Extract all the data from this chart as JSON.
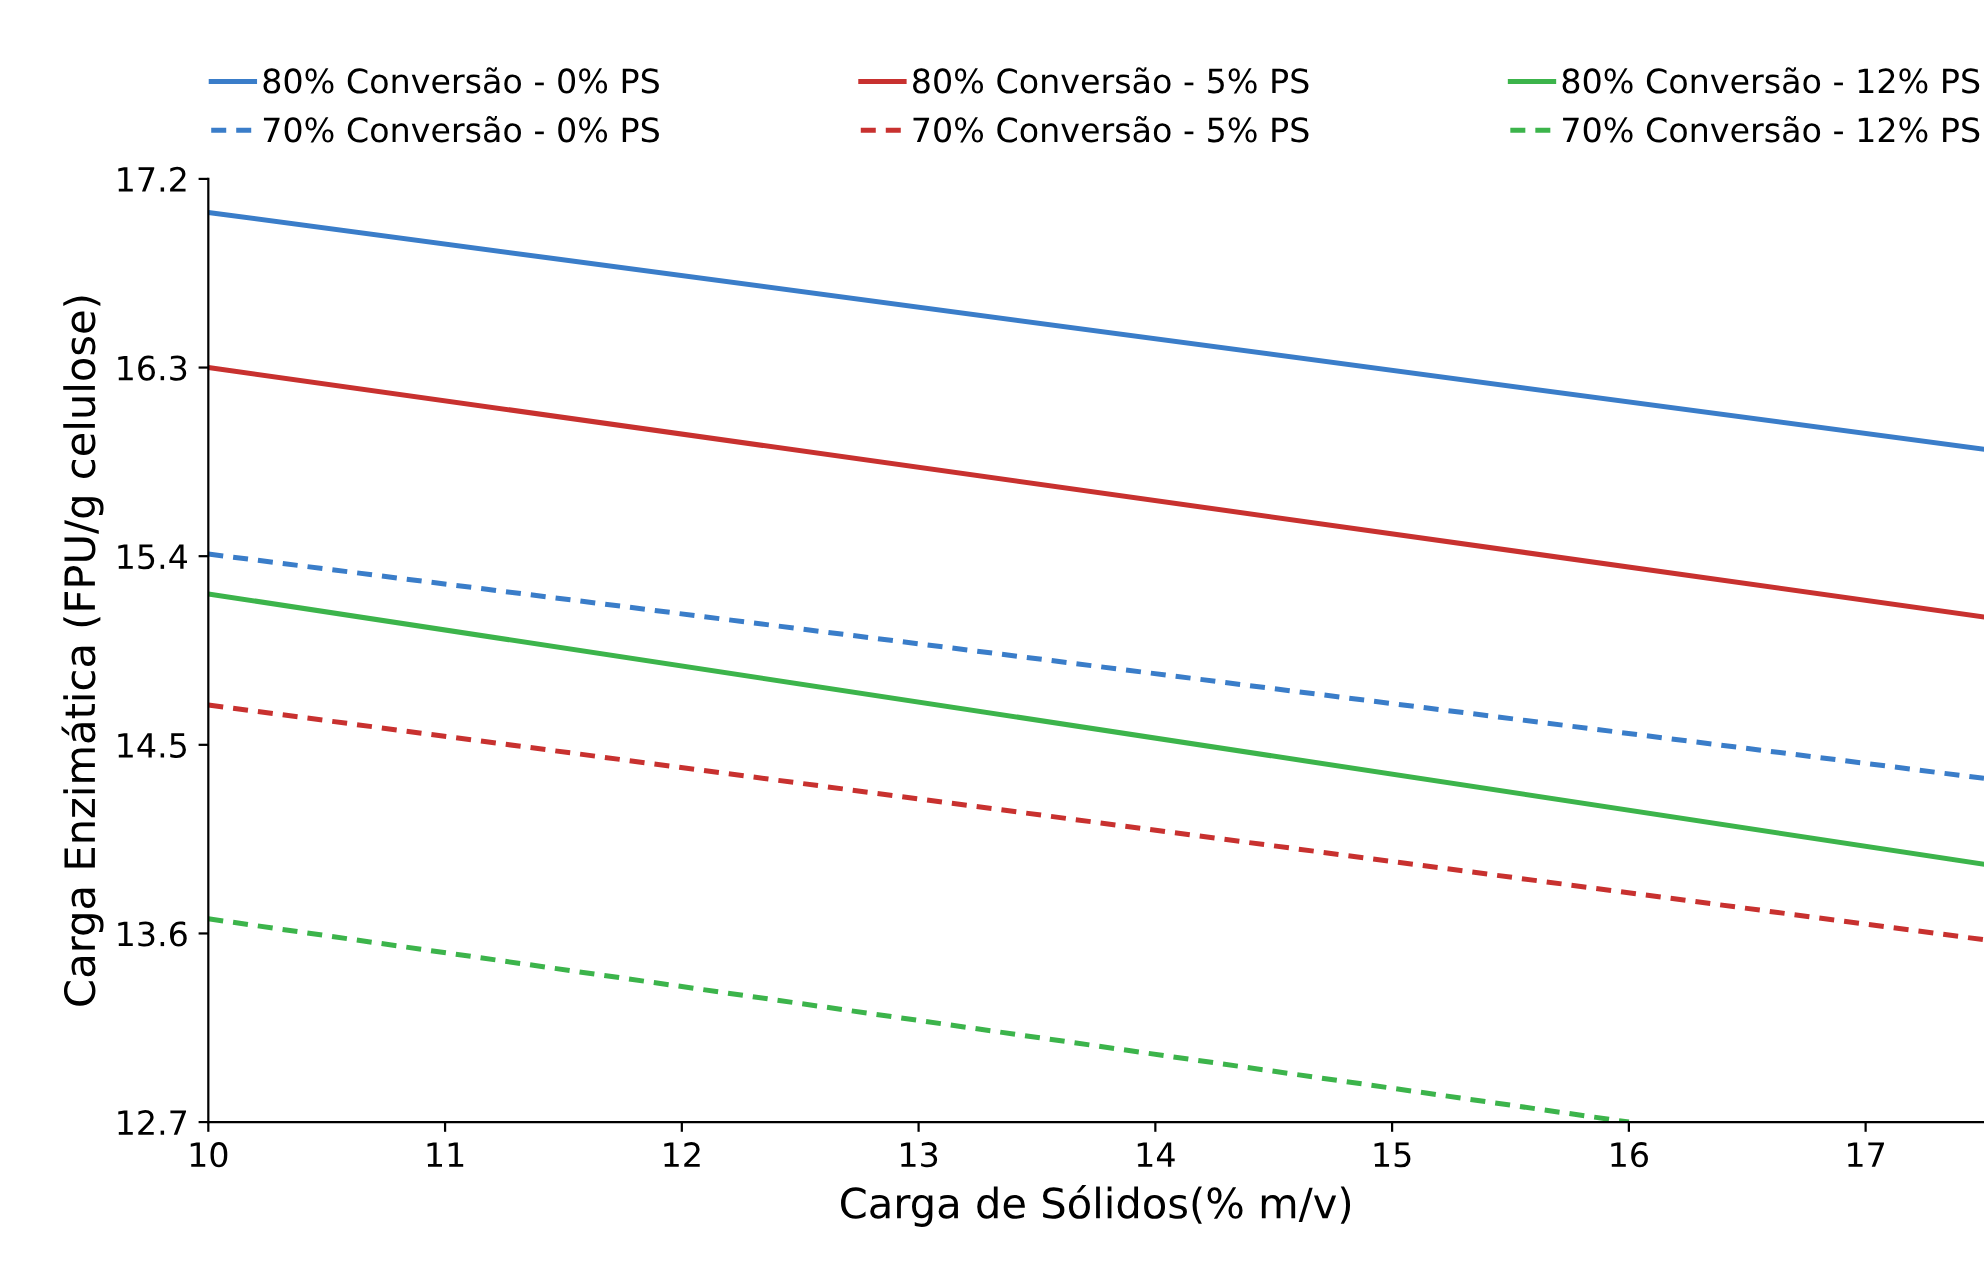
{
  "chart_data": {
    "type": "line",
    "xlabel": "Carga de Sólidos(% m/v)",
    "ylabel": "Carga Enzimática (FPU/g celulose)",
    "xlim": [
      10,
      17.5
    ],
    "xticks": [
      10,
      11,
      12,
      13,
      14,
      15,
      16,
      17
    ],
    "ylim": [
      12.7,
      17.2
    ],
    "yticks": [
      12.7,
      13.6,
      14.5,
      15.4,
      16.3,
      17.2
    ],
    "grid": false,
    "legend": "top",
    "marker": "none",
    "series": [
      {
        "name": "80% Conversão - 0% PS",
        "color": "#3a7dc9",
        "line_style": "solid",
        "x": [
          10,
          17.5
        ],
        "values": [
          17.04,
          15.91
        ]
      },
      {
        "name": "70% Conversão - 0% PS",
        "color": "#3a7dc9",
        "line_style": "dashed",
        "x": [
          10,
          17.5
        ],
        "values": [
          15.41,
          14.34
        ]
      },
      {
        "name": "80% Conversão - 5% PS",
        "color": "#c8312f",
        "line_style": "solid",
        "x": [
          10,
          17.5
        ],
        "values": [
          16.3,
          15.11
        ]
      },
      {
        "name": "70% Conversão - 5% PS",
        "color": "#c8312f",
        "line_style": "dashed",
        "x": [
          10,
          17.5
        ],
        "values": [
          14.69,
          13.57
        ]
      },
      {
        "name": "80% Conversão - 12% PS",
        "color": "#3cb44b",
        "line_style": "solid",
        "x": [
          10,
          17.5
        ],
        "values": [
          15.22,
          13.93
        ]
      },
      {
        "name": "70% Conversão - 12% PS",
        "color": "#3cb44b",
        "line_style": "dashed",
        "x": [
          10,
          16
        ],
        "values": [
          13.67,
          12.7
        ]
      }
    ]
  }
}
